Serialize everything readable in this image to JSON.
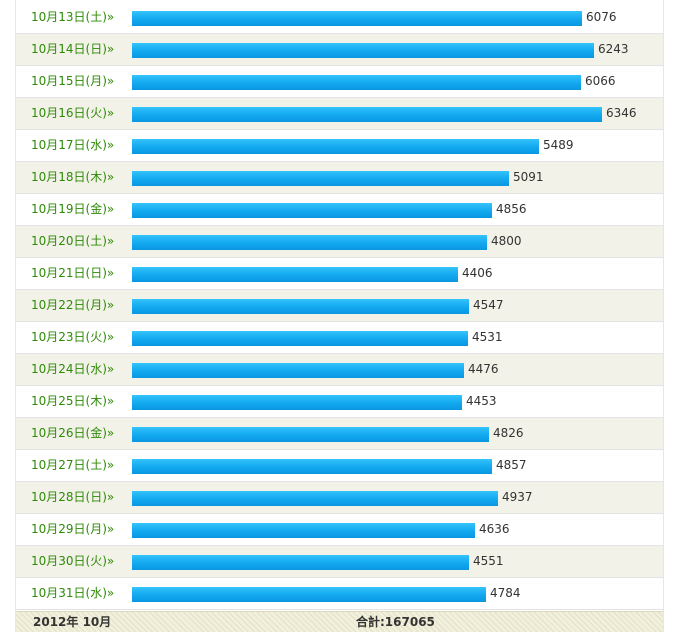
{
  "chart_data": {
    "type": "bar",
    "orientation": "horizontal",
    "categories": [
      "10月13日(土)»",
      "10月14日(日)»",
      "10月15日(月)»",
      "10月16日(火)»",
      "10月17日(水)»",
      "10月18日(木)»",
      "10月19日(金)»",
      "10月20日(土)»",
      "10月21日(日)»",
      "10月22日(月)»",
      "10月23日(火)»",
      "10月24日(水)»",
      "10月25日(木)»",
      "10月26日(金)»",
      "10月27日(土)»",
      "10月28日(日)»",
      "10月29日(月)»",
      "10月30日(火)»",
      "10月31日(水)»"
    ],
    "values": [
      6076,
      6243,
      6066,
      6346,
      5489,
      5091,
      4856,
      4800,
      4406,
      4547,
      4531,
      4476,
      4453,
      4826,
      4857,
      4937,
      4636,
      4551,
      4784
    ],
    "bar_color": "#11a8ef",
    "label_color": "#2e8b08"
  },
  "footer": {
    "month": "2012年 10月",
    "total": "合計:167065"
  }
}
